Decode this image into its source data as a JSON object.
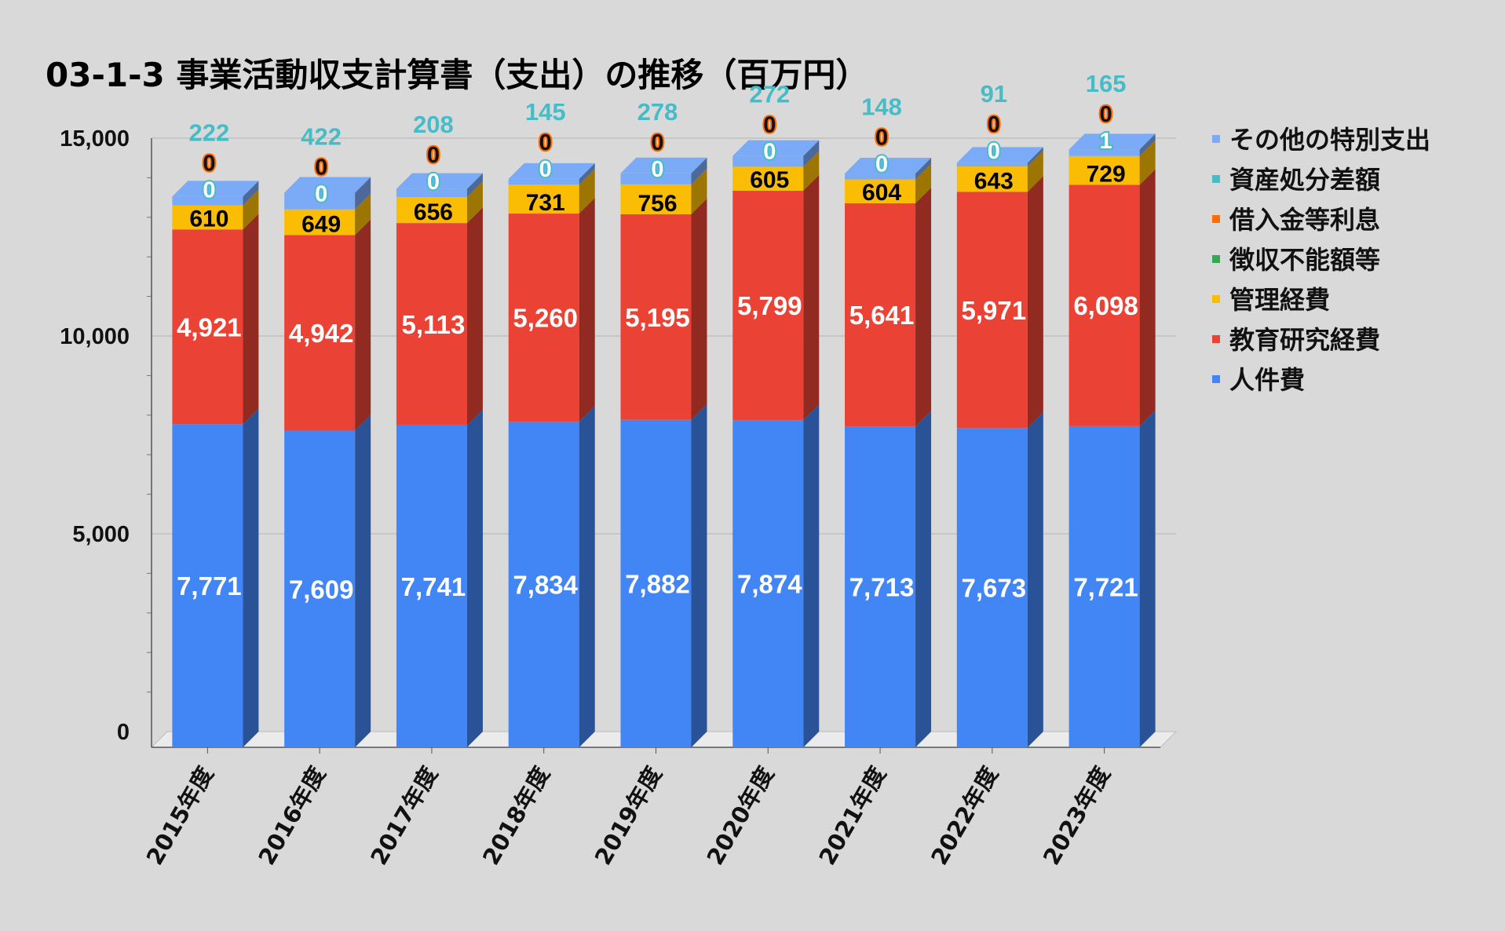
{
  "chart_data": {
    "type": "bar",
    "stacked": true,
    "style": "3d",
    "title": "03-1-3 事業活動収支計算書（支出）の推移（百万円）",
    "categories": [
      "2015年度",
      "2016年度",
      "2017年度",
      "2018年度",
      "2019年度",
      "2020年度",
      "2021年度",
      "2022年度",
      "2023年度"
    ],
    "ylim": [
      0,
      15000
    ],
    "yticks": [
      "0",
      "5,000",
      "10,000",
      "15,000"
    ],
    "grid": true,
    "legend_position": "right",
    "series": [
      {
        "name": "人件費",
        "color": "#4285f4",
        "label_color": "#ffffff",
        "values": [
          7771,
          7609,
          7741,
          7834,
          7882,
          7874,
          7713,
          7673,
          7721
        ],
        "labels": [
          "7,771",
          "7,609",
          "7,741",
          "7,834",
          "7,882",
          "7,874",
          "7,713",
          "7,673",
          "7,721"
        ]
      },
      {
        "name": "教育研究経費",
        "color": "#ea4335",
        "label_color": "#ffffff",
        "values": [
          4921,
          4942,
          5113,
          5260,
          5195,
          5799,
          5641,
          5971,
          6098
        ],
        "labels": [
          "4,921",
          "4,942",
          "5,113",
          "5,260",
          "5,195",
          "5,799",
          "5,641",
          "5,971",
          "6,098"
        ]
      },
      {
        "name": "管理経費",
        "color": "#fbbc04",
        "label_color": "#000000",
        "values": [
          610,
          649,
          656,
          731,
          756,
          605,
          604,
          643,
          729
        ],
        "labels": [
          "610",
          "649",
          "656",
          "731",
          "756",
          "605",
          "604",
          "643",
          "729"
        ]
      },
      {
        "name": "徴収不能額等",
        "color": "#34a853",
        "label_color": "#000000",
        "values": [
          0,
          0,
          0,
          0,
          0,
          0,
          0,
          0,
          0
        ],
        "labels": []
      },
      {
        "name": "借入金等利息",
        "color": "#ff6d01",
        "label_color": "#ff6d01",
        "values": [
          0,
          0,
          0,
          0,
          0,
          0,
          0,
          0,
          0
        ],
        "labels": [
          "0",
          "0",
          "0",
          "0",
          "0",
          "0",
          "0",
          "0",
          "0"
        ]
      },
      {
        "name": "資産処分差額",
        "color": "#46bdc6",
        "label_color": "#46bdc6",
        "values": [
          0,
          0,
          0,
          0,
          0,
          0,
          0,
          0,
          1
        ],
        "labels": [
          "0",
          "0",
          "0",
          "0",
          "0",
          "0",
          "0",
          "0",
          "1"
        ]
      },
      {
        "name": "その他の特別支出",
        "color": "#7baaf7",
        "label_color": "#46bdc6",
        "values": [
          222,
          422,
          208,
          145,
          278,
          272,
          148,
          91,
          165
        ],
        "labels": [
          "222",
          "422",
          "208",
          "145",
          "278",
          "272",
          "148",
          "91",
          "165"
        ]
      }
    ]
  }
}
